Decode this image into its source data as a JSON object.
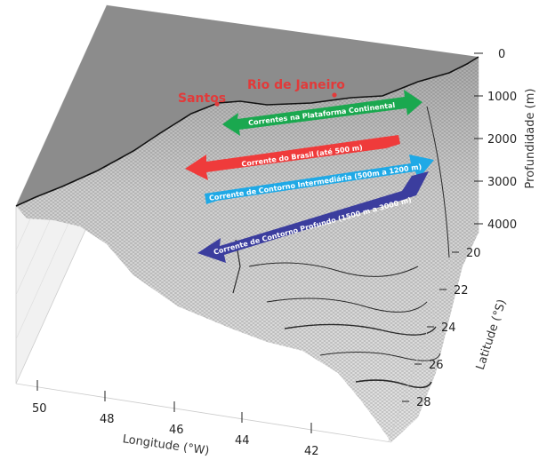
{
  "map": {
    "land_color": "#8c8c8c",
    "coast_color": "#111111",
    "mesh_color": "#3a3a3a"
  },
  "cities": [
    {
      "name": "Santos",
      "color": "#e23a3a"
    },
    {
      "name": "Rio de Janeiro",
      "color": "#e23a3a"
    }
  ],
  "currents": [
    {
      "label": "Correntes na Plataforma Continental",
      "color": "#1aa84f",
      "direction": "both"
    },
    {
      "label": "Corrente do Brasil (até 500 m)",
      "color": "#ef3b3b",
      "direction": "southwest"
    },
    {
      "label": "Corrente de Contorno Intermediária (500m a 1200 m)",
      "color": "#1fa9e6",
      "direction": "northeast"
    },
    {
      "label": "Corrente de Contorno Profundo (1500 m a 3000 m)",
      "color": "#3b3d9e",
      "direction": "southwest"
    }
  ],
  "axes": {
    "x": {
      "label": "Longitude (°W)",
      "ticks": [
        "50",
        "48",
        "46",
        "44",
        "42"
      ]
    },
    "y": {
      "label": "Latitude (°S)",
      "ticks": [
        "20",
        "22",
        "24",
        "26",
        "28"
      ]
    },
    "z": {
      "label": "Profundidade (m)",
      "ticks": [
        "0",
        "1000",
        "2000",
        "3000",
        "4000"
      ]
    }
  }
}
